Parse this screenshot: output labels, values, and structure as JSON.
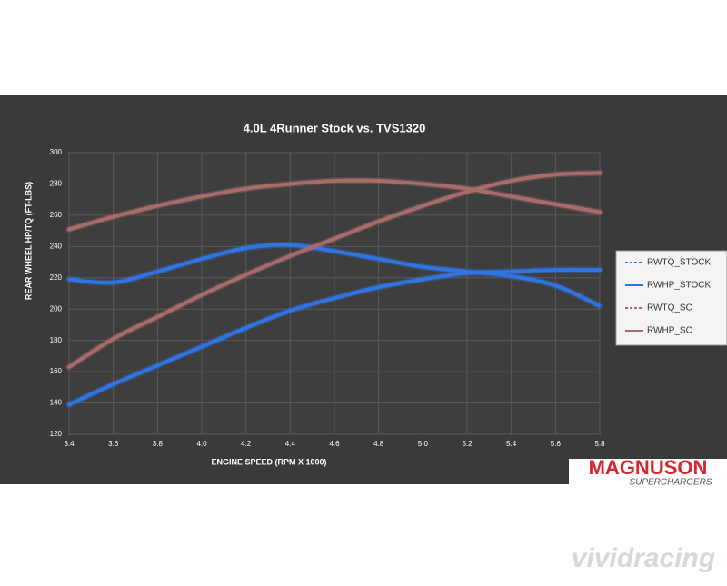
{
  "chart_data": {
    "type": "line",
    "title": "4.0L 4Runner Stock vs. TVS1320",
    "x_label": "ENGINE SPEED (RPM X 1000)",
    "y_label": "REAR WHEEL HP/TQ (FT-LBS)",
    "x": [
      3.4,
      3.6,
      3.8,
      4.0,
      4.2,
      4.4,
      4.6,
      4.8,
      5.0,
      5.2,
      5.4,
      5.6,
      5.8
    ],
    "series": [
      {
        "name": "RWTQ_STOCK",
        "color": "#2f74e0",
        "dashed": true,
        "values": [
          219,
          217,
          224,
          232,
          239,
          241,
          237,
          232,
          227,
          224,
          221,
          215,
          202
        ]
      },
      {
        "name": "RWHP_STOCK",
        "color": "#2f74e0",
        "dashed": false,
        "values": [
          139,
          152,
          164,
          176,
          188,
          199,
          207,
          214,
          219,
          223,
          224,
          225,
          225
        ]
      },
      {
        "name": "RWTQ_SC",
        "color": "#a86c6c",
        "dashed": true,
        "values": [
          251,
          259,
          266,
          272,
          277,
          280,
          282,
          282,
          280,
          277,
          272,
          267,
          262
        ]
      },
      {
        "name": "RWHP_SC",
        "color": "#a86c6c",
        "dashed": false,
        "values": [
          163,
          181,
          195,
          209,
          222,
          234,
          245,
          256,
          266,
          275,
          282,
          286,
          287
        ]
      }
    ],
    "xlim": [
      3.4,
      5.8
    ],
    "xticks": [
      3.4,
      3.6,
      3.8,
      {
        "value": 4,
        "label": "4.0"
      },
      4.2,
      4.4,
      4.6,
      4.8,
      {
        "value": 5,
        "label": "5.0"
      },
      5.2,
      5.4,
      5.6,
      5.8
    ],
    "ylim": [
      120,
      300
    ],
    "yticks": [
      120,
      140,
      160,
      180,
      200,
      220,
      240,
      260,
      280,
      300
    ],
    "grid": true,
    "legend": "right"
  },
  "branding": {
    "logo": "MAGNUSON",
    "tagline": "SUPERCHARGERS",
    "watermark": "vividracing"
  }
}
